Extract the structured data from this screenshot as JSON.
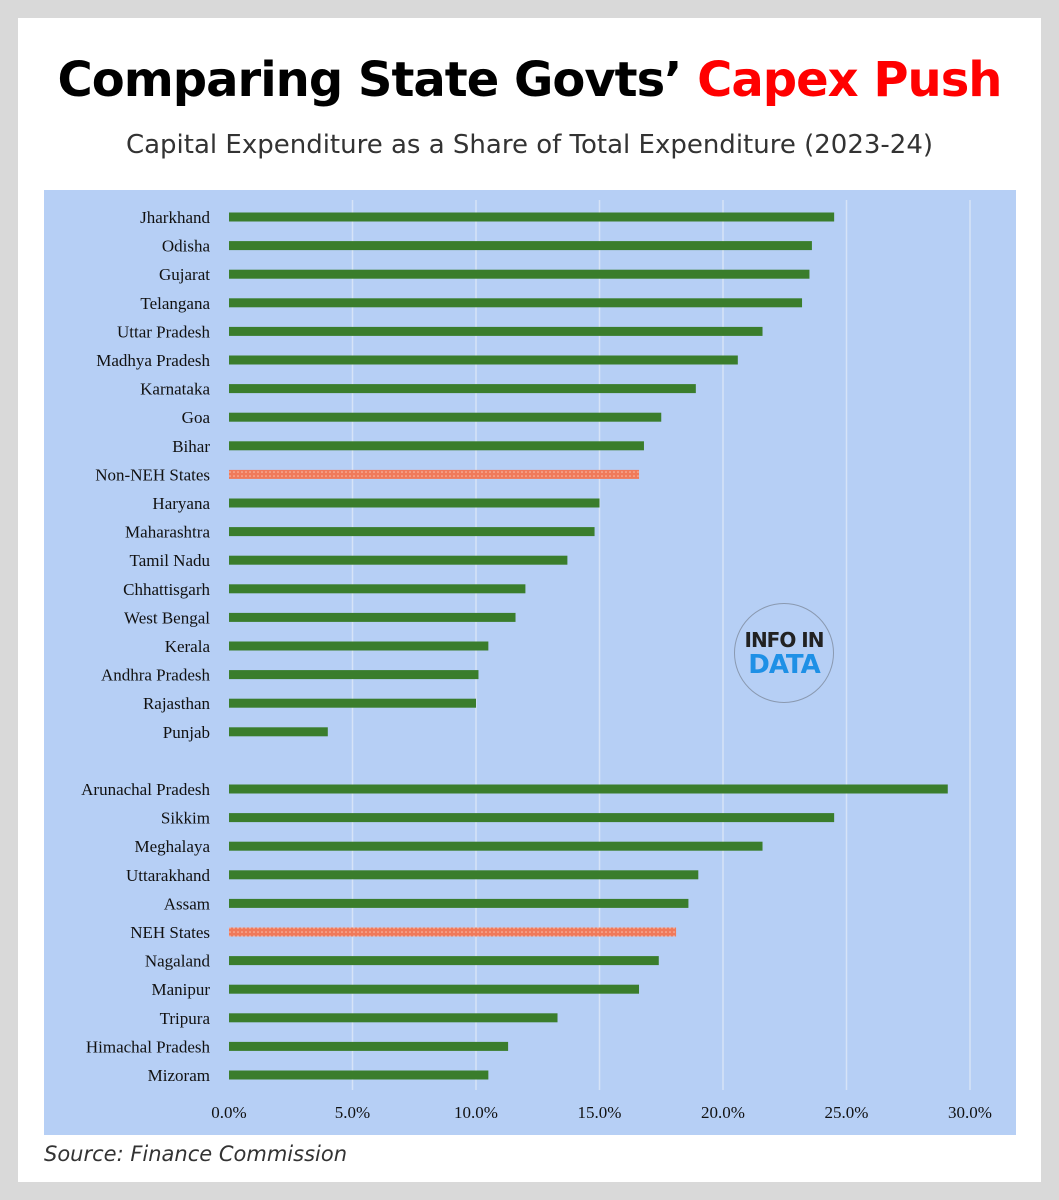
{
  "title_main": "Comparing State Govts’",
  "title_accent": "Capex Push",
  "subtitle": "Capital Expenditure as a Share of Total Expenditure (2023-24)",
  "source": "Source: Finance Commission",
  "logo": {
    "line1": "INFO IN",
    "line2": "DATA"
  },
  "colors": {
    "bar": "#3a7d2c",
    "highlight": "#f07a5a",
    "plot_bg": "#b6cff5",
    "grid": "#d6e3f7",
    "title_accent": "#ff0000"
  },
  "chart_data": {
    "type": "bar",
    "orientation": "horizontal",
    "title": "Capital Expenditure as a Share of Total Expenditure (2023-24)",
    "xlim": [
      0,
      30
    ],
    "xticks": [
      "0.0%",
      "5.0%",
      "10.0%",
      "15.0%",
      "20.0%",
      "25.0%",
      "30.0%"
    ],
    "grid": true,
    "groups": [
      {
        "categories": [
          "Jharkhand",
          "Odisha",
          "Gujarat",
          "Telangana",
          "Uttar Pradesh",
          "Madhya Pradesh",
          "Karnataka",
          "Goa",
          "Bihar",
          "Non-NEH States",
          "Haryana",
          "Maharashtra",
          "Tamil Nadu",
          "Chhattisgarh",
          "West Bengal",
          "Kerala",
          "Andhra Pradesh",
          "Rajasthan",
          "Punjab"
        ],
        "values": [
          24.5,
          23.6,
          23.5,
          23.2,
          21.6,
          20.6,
          18.9,
          17.5,
          16.8,
          16.6,
          15.0,
          14.8,
          13.7,
          12.0,
          11.6,
          10.5,
          10.1,
          10.0,
          4.0
        ],
        "highlight": [
          "Non-NEH States"
        ]
      },
      {
        "categories": [
          "Arunachal Pradesh",
          "Sikkim",
          "Meghalaya",
          "Uttarakhand",
          "Assam",
          "NEH States",
          "Nagaland",
          "Manipur",
          "Tripura",
          "Himachal Pradesh",
          "Mizoram"
        ],
        "values": [
          29.1,
          24.5,
          21.6,
          19.0,
          18.6,
          18.1,
          17.4,
          16.6,
          13.3,
          11.3,
          10.5
        ],
        "highlight": [
          "NEH States"
        ]
      }
    ]
  }
}
